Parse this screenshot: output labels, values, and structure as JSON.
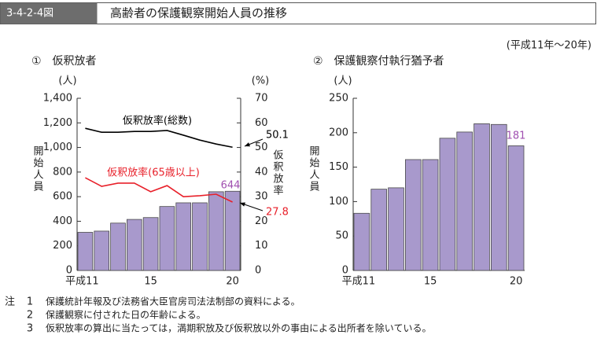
{
  "header": {
    "figure_number": "3-4-2-4図",
    "title": "高齢者の保護観察開始人員の推移",
    "period": "(平成11年～20年)"
  },
  "chart_data": [
    {
      "type": "bar",
      "subtitle": "①　仮釈放者",
      "y_unit": "(人)",
      "y_label": "開始人員",
      "y2_unit": "(%)",
      "y2_label": "仮釈放率",
      "categories": [
        "平成11",
        null,
        null,
        null,
        "15",
        null,
        null,
        null,
        null,
        "20"
      ],
      "series": [
        {
          "type": "bar",
          "color": "#a899cc",
          "values": [
            310,
            320,
            385,
            415,
            430,
            520,
            550,
            550,
            640,
            644
          ],
          "value_labels": [
            null,
            null,
            null,
            null,
            null,
            null,
            null,
            null,
            null,
            "644"
          ]
        },
        {
          "type": "line",
          "name": "仮釈放率(総数)",
          "color": "#000000",
          "axis": "y2",
          "values": [
            57.8,
            56.2,
            56.2,
            56.5,
            56.5,
            56.9,
            55,
            53,
            51.4,
            50.1
          ],
          "value_labels": [
            null,
            null,
            null,
            null,
            null,
            null,
            null,
            null,
            null,
            "50.1"
          ]
        },
        {
          "type": "line",
          "name": "仮釈放率(65歳以上)",
          "color": "#e8202a",
          "axis": "y2",
          "values": [
            37.7,
            34.2,
            35.5,
            35.5,
            32,
            34.5,
            30,
            30.4,
            31,
            27.8
          ],
          "value_labels": [
            null,
            null,
            null,
            null,
            null,
            null,
            null,
            null,
            null,
            "27.8"
          ]
        }
      ],
      "ylim": [
        0,
        1400
      ],
      "yticks": [
        0,
        200,
        400,
        600,
        800,
        {
          "value": 1000,
          "label": "1,000"
        },
        {
          "value": 1200,
          "label": "1,200"
        },
        {
          "value": 1400,
          "label": "1,400"
        }
      ],
      "y2lim": [
        0,
        70
      ],
      "y2ticks": [
        0,
        10,
        20,
        30,
        40,
        50,
        60,
        70
      ],
      "grid": false
    },
    {
      "type": "bar",
      "subtitle": "②　保護観察付執行猶予者",
      "y_unit": "(人)",
      "y_label": "開始人員",
      "categories": [
        "平成11",
        null,
        null,
        null,
        "15",
        null,
        null,
        null,
        null,
        "20"
      ],
      "series": [
        {
          "type": "bar",
          "color": "#a899cc",
          "values": [
            83,
            118,
            120,
            161,
            161,
            192,
            201,
            213,
            212,
            181
          ],
          "value_labels": [
            null,
            null,
            null,
            null,
            null,
            null,
            null,
            null,
            null,
            "181"
          ]
        }
      ],
      "ylim": [
        0,
        250
      ],
      "yticks": [
        0,
        50,
        100,
        150,
        200,
        250
      ],
      "grid": false
    }
  ],
  "notes": {
    "label": "注",
    "items": [
      {
        "number": "1",
        "text": "保護統計年報及び法務省大臣官房司法法制部の資料による。"
      },
      {
        "number": "2",
        "text": "保護観察に付された日の年齢による。"
      },
      {
        "number": "3",
        "text": "仮釈放率の算出に当たっては，満期釈放及び仮釈放以外の事由による出所者を除いている。"
      }
    ]
  }
}
